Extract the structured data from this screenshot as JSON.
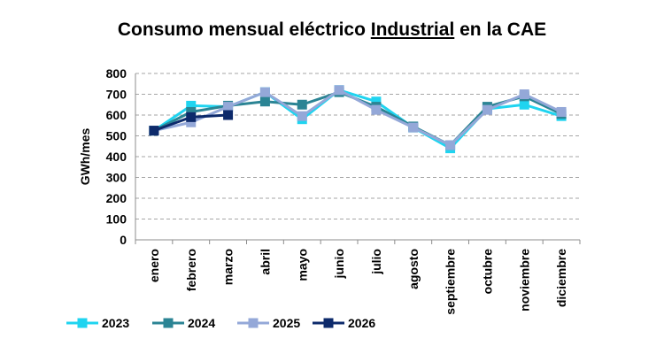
{
  "chart_data": {
    "type": "line",
    "title_parts": [
      "Consumo mensual eléctrico ",
      "Industrial",
      " en la CAE"
    ],
    "ylabel": "GWh/mes",
    "xlabel": "",
    "ylim": [
      0,
      800
    ],
    "yticks": [
      0,
      100,
      200,
      300,
      400,
      500,
      600,
      700,
      800
    ],
    "grid": "horizontal dashed",
    "legend_position": "bottom",
    "categories": [
      "enero",
      "febrero",
      "marzo",
      "abril",
      "mayo",
      "junio",
      "julio",
      "agosto",
      "septiembre",
      "octubre",
      "noviembre",
      "diciembre"
    ],
    "series": [
      {
        "name": "2023",
        "color": "#1FD4F0",
        "values": [
          525,
          645,
          640,
          710,
          580,
          720,
          665,
          540,
          440,
          630,
          650,
          595
        ]
      },
      {
        "name": "2024",
        "color": "#2B8494",
        "values": [
          525,
          615,
          645,
          665,
          650,
          710,
          640,
          545,
          455,
          640,
          690,
          605
        ]
      },
      {
        "name": "2025",
        "color": "#94A8D8",
        "values": [
          525,
          565,
          640,
          710,
          595,
          720,
          625,
          540,
          455,
          625,
          700,
          615
        ]
      },
      {
        "name": "2026",
        "color": "#0D2A6B",
        "values": [
          525,
          590,
          600,
          null,
          null,
          null,
          null,
          null,
          null,
          null,
          null,
          null
        ]
      }
    ]
  }
}
